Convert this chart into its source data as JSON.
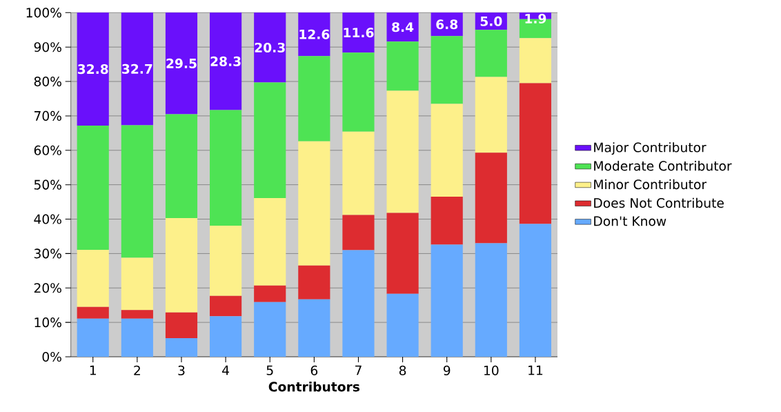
{
  "chart_data": {
    "type": "bar",
    "stacked": true,
    "xlabel": "Contributors",
    "categories": [
      "1",
      "2",
      "3",
      "4",
      "5",
      "6",
      "7",
      "8",
      "9",
      "10",
      "11"
    ],
    "series": [
      {
        "name": "Don't Know",
        "color": "#66aaff",
        "values": [
          11.1,
          11.1,
          5.4,
          11.8,
          15.9,
          16.7,
          31.0,
          18.3,
          32.6,
          33.0,
          38.6
        ]
      },
      {
        "name": "Does Not Contribute",
        "color": "#dd2c30",
        "values": [
          3.4,
          2.5,
          7.5,
          5.9,
          4.8,
          9.8,
          10.2,
          23.5,
          13.9,
          26.3,
          40.9
        ]
      },
      {
        "name": "Minor Contributor",
        "color": "#fdf08a",
        "values": [
          16.6,
          15.2,
          27.4,
          20.4,
          25.4,
          36.1,
          24.2,
          35.5,
          27.0,
          22.0,
          13.1
        ]
      },
      {
        "name": "Moderate Contributor",
        "color": "#4ee354",
        "values": [
          36.1,
          38.5,
          30.2,
          33.6,
          33.6,
          24.8,
          23.0,
          14.3,
          19.7,
          13.7,
          5.5
        ]
      },
      {
        "name": "Major Contributor",
        "color": "#6a10fb",
        "values": [
          32.8,
          32.7,
          29.5,
          28.3,
          20.3,
          12.6,
          11.6,
          8.4,
          6.8,
          5.0,
          1.9
        ],
        "value_labels": [
          "32.8",
          "32.7",
          "29.5",
          "28.3",
          "20.3",
          "12.6",
          "11.6",
          "8.4",
          "6.8",
          "5.0",
          "1.9"
        ]
      }
    ],
    "ylim": [
      0,
      100
    ],
    "yticks": [
      {
        "value": 0,
        "label": "0%"
      },
      {
        "value": 10,
        "label": "10%"
      },
      {
        "value": 20,
        "label": "20%"
      },
      {
        "value": 30,
        "label": "30%"
      },
      {
        "value": 40,
        "label": "40%"
      },
      {
        "value": 50,
        "label": "50%"
      },
      {
        "value": 60,
        "label": "60%"
      },
      {
        "value": 70,
        "label": "70%"
      },
      {
        "value": 80,
        "label": "80%"
      },
      {
        "value": 90,
        "label": "90%"
      },
      {
        "value": 100,
        "label": "100%"
      }
    ],
    "grid": "y",
    "legend": "right"
  }
}
